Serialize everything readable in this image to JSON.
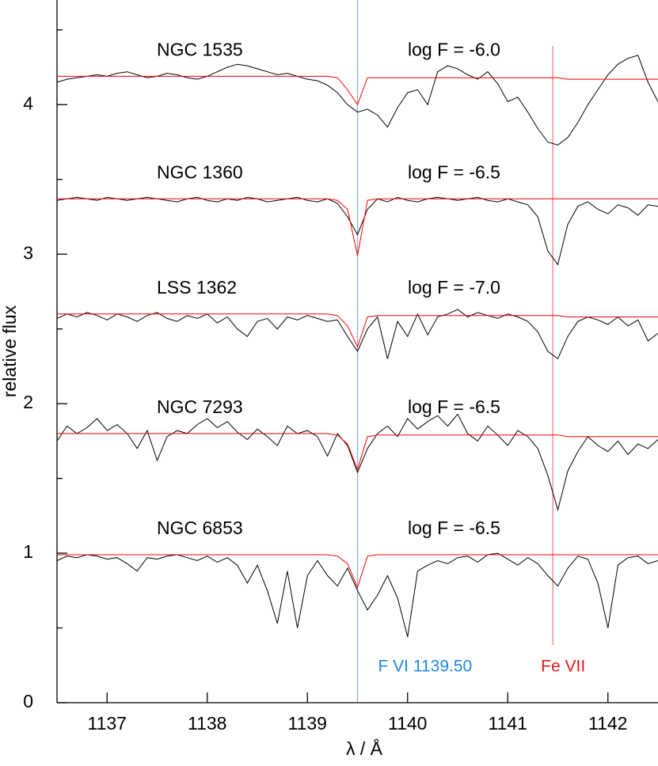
{
  "chart_data": {
    "type": "line",
    "xlabel": "λ / Å",
    "ylabel": "relative flux",
    "xlim": [
      1136.5,
      1142.5
    ],
    "ylim": [
      0,
      4.7
    ],
    "xticks": [
      1137,
      1138,
      1139,
      1140,
      1141,
      1142
    ],
    "yticks": [
      0,
      1,
      2,
      3,
      4
    ],
    "minor_yticks": [
      0.5,
      1.5,
      2.5,
      3.5,
      4.5
    ],
    "observed_color": "#000000",
    "model_color": "#ff0000",
    "x": [
      1136.5,
      1136.6,
      1136.7,
      1136.8,
      1136.9,
      1137.0,
      1137.1,
      1137.2,
      1137.3,
      1137.4,
      1137.5,
      1137.6,
      1137.7,
      1137.8,
      1137.9,
      1138.0,
      1138.1,
      1138.2,
      1138.3,
      1138.4,
      1138.5,
      1138.6,
      1138.7,
      1138.8,
      1138.9,
      1139.0,
      1139.1,
      1139.2,
      1139.3,
      1139.4,
      1139.5,
      1139.6,
      1139.7,
      1139.8,
      1139.9,
      1140.0,
      1140.1,
      1140.2,
      1140.3,
      1140.4,
      1140.5,
      1140.6,
      1140.7,
      1140.8,
      1140.9,
      1141.0,
      1141.1,
      1141.2,
      1141.3,
      1141.4,
      1141.5,
      1141.6,
      1141.7,
      1141.8,
      1141.9,
      1142.0,
      1142.1,
      1142.2,
      1142.3,
      1142.4,
      1142.5
    ],
    "lines": [
      {
        "label": "F VI 1139.50",
        "x": 1139.5,
        "color": "#8ab4d8",
        "label_color": "#1e88e5"
      },
      {
        "label": "Fe VII",
        "x": 1141.45,
        "color": "#f08080",
        "label_color": "#e8161b"
      }
    ],
    "spectra": [
      {
        "name": "NGC 1535",
        "annotation": "log F = -6.0",
        "observed": [
          4.15,
          4.17,
          4.18,
          4.19,
          4.2,
          4.19,
          4.21,
          4.22,
          4.2,
          4.18,
          4.19,
          4.21,
          4.2,
          4.18,
          4.17,
          4.19,
          4.22,
          4.25,
          4.27,
          4.26,
          4.24,
          4.22,
          4.2,
          4.21,
          4.19,
          4.17,
          4.16,
          4.13,
          4.08,
          4.0,
          3.95,
          3.97,
          3.93,
          3.85,
          3.98,
          4.08,
          4.1,
          4.0,
          4.22,
          4.26,
          4.24,
          4.2,
          4.17,
          4.22,
          4.14,
          4.02,
          4.05,
          3.95,
          3.84,
          3.75,
          3.73,
          3.78,
          3.88,
          4.0,
          4.1,
          4.2,
          4.27,
          4.31,
          4.33,
          4.15,
          4.02
        ],
        "model": [
          4.19,
          4.19,
          4.19,
          4.19,
          4.19,
          4.19,
          4.19,
          4.19,
          4.19,
          4.19,
          4.19,
          4.19,
          4.19,
          4.19,
          4.19,
          4.19,
          4.19,
          4.19,
          4.19,
          4.19,
          4.19,
          4.19,
          4.19,
          4.19,
          4.19,
          4.19,
          4.19,
          4.19,
          4.18,
          4.1,
          4.0,
          4.18,
          4.18,
          4.18,
          4.18,
          4.18,
          4.18,
          4.18,
          4.18,
          4.18,
          4.18,
          4.18,
          4.18,
          4.18,
          4.18,
          4.18,
          4.18,
          4.18,
          4.18,
          4.18,
          4.18,
          4.17,
          4.17,
          4.17,
          4.17,
          4.17,
          4.17,
          4.17,
          4.17,
          4.17,
          4.17
        ]
      },
      {
        "name": "NGC 1360",
        "annotation": "log F = -6.5",
        "observed": [
          3.36,
          3.37,
          3.38,
          3.37,
          3.36,
          3.38,
          3.37,
          3.36,
          3.37,
          3.38,
          3.37,
          3.36,
          3.35,
          3.37,
          3.38,
          3.36,
          3.35,
          3.37,
          3.36,
          3.38,
          3.37,
          3.35,
          3.36,
          3.37,
          3.38,
          3.36,
          3.35,
          3.37,
          3.34,
          3.25,
          3.13,
          3.3,
          3.37,
          3.35,
          3.38,
          3.36,
          3.35,
          3.37,
          3.38,
          3.37,
          3.36,
          3.37,
          3.38,
          3.36,
          3.35,
          3.37,
          3.35,
          3.33,
          3.25,
          3.02,
          2.93,
          3.2,
          3.32,
          3.35,
          3.3,
          3.27,
          3.33,
          3.31,
          3.26,
          3.33,
          3.32
        ],
        "model": [
          3.37,
          3.37,
          3.37,
          3.37,
          3.37,
          3.37,
          3.37,
          3.37,
          3.37,
          3.37,
          3.37,
          3.37,
          3.37,
          3.37,
          3.37,
          3.37,
          3.37,
          3.37,
          3.37,
          3.37,
          3.37,
          3.37,
          3.37,
          3.37,
          3.37,
          3.37,
          3.37,
          3.37,
          3.36,
          3.3,
          2.99,
          3.36,
          3.37,
          3.37,
          3.37,
          3.37,
          3.37,
          3.37,
          3.37,
          3.37,
          3.37,
          3.37,
          3.37,
          3.37,
          3.37,
          3.37,
          3.37,
          3.37,
          3.37,
          3.37,
          3.37,
          3.37,
          3.37,
          3.37,
          3.37,
          3.37,
          3.37,
          3.37,
          3.37,
          3.37,
          3.37
        ]
      },
      {
        "name": "LSS 1362",
        "annotation": "log F = -7.0",
        "observed": [
          2.57,
          2.6,
          2.58,
          2.61,
          2.59,
          2.56,
          2.6,
          2.58,
          2.55,
          2.59,
          2.61,
          2.57,
          2.55,
          2.59,
          2.57,
          2.6,
          2.54,
          2.58,
          2.5,
          2.45,
          2.55,
          2.57,
          2.5,
          2.58,
          2.56,
          2.59,
          2.57,
          2.55,
          2.56,
          2.45,
          2.35,
          2.5,
          2.58,
          2.3,
          2.55,
          2.45,
          2.6,
          2.46,
          2.58,
          2.6,
          2.63,
          2.58,
          2.61,
          2.59,
          2.57,
          2.6,
          2.58,
          2.55,
          2.48,
          2.35,
          2.3,
          2.45,
          2.55,
          2.58,
          2.56,
          2.53,
          2.58,
          2.52,
          2.56,
          2.42,
          2.47
        ],
        "model": [
          2.6,
          2.6,
          2.6,
          2.6,
          2.6,
          2.6,
          2.6,
          2.6,
          2.6,
          2.6,
          2.6,
          2.6,
          2.6,
          2.6,
          2.6,
          2.6,
          2.6,
          2.6,
          2.6,
          2.6,
          2.6,
          2.6,
          2.6,
          2.6,
          2.6,
          2.6,
          2.6,
          2.6,
          2.59,
          2.52,
          2.38,
          2.58,
          2.59,
          2.59,
          2.59,
          2.59,
          2.59,
          2.59,
          2.59,
          2.59,
          2.59,
          2.59,
          2.59,
          2.59,
          2.59,
          2.59,
          2.59,
          2.59,
          2.59,
          2.59,
          2.59,
          2.58,
          2.58,
          2.58,
          2.58,
          2.58,
          2.58,
          2.58,
          2.58,
          2.58,
          2.58
        ]
      },
      {
        "name": "NGC 7293",
        "annotation": "log F = -6.5",
        "observed": [
          1.75,
          1.85,
          1.8,
          1.84,
          1.9,
          1.82,
          1.86,
          1.8,
          1.7,
          1.82,
          1.62,
          1.78,
          1.82,
          1.8,
          1.86,
          1.9,
          1.84,
          1.88,
          1.81,
          1.76,
          1.83,
          1.78,
          1.72,
          1.85,
          1.8,
          1.82,
          1.78,
          1.65,
          1.8,
          1.72,
          1.54,
          1.7,
          1.8,
          1.85,
          1.78,
          1.9,
          1.83,
          1.88,
          1.92,
          1.85,
          1.93,
          1.8,
          1.75,
          1.85,
          1.79,
          1.72,
          1.82,
          1.78,
          1.7,
          1.52,
          1.29,
          1.55,
          1.68,
          1.78,
          1.72,
          1.68,
          1.75,
          1.66,
          1.73,
          1.7,
          1.76
        ],
        "model": [
          1.8,
          1.8,
          1.8,
          1.8,
          1.8,
          1.8,
          1.8,
          1.8,
          1.8,
          1.8,
          1.8,
          1.8,
          1.8,
          1.8,
          1.8,
          1.8,
          1.8,
          1.8,
          1.8,
          1.8,
          1.8,
          1.8,
          1.8,
          1.8,
          1.8,
          1.8,
          1.8,
          1.8,
          1.79,
          1.73,
          1.56,
          1.78,
          1.79,
          1.79,
          1.79,
          1.79,
          1.79,
          1.79,
          1.79,
          1.79,
          1.79,
          1.79,
          1.79,
          1.79,
          1.79,
          1.79,
          1.79,
          1.79,
          1.79,
          1.79,
          1.79,
          1.78,
          1.78,
          1.78,
          1.78,
          1.78,
          1.78,
          1.78,
          1.78,
          1.78,
          1.78
        ]
      },
      {
        "name": "NGC 6853",
        "annotation": "log F = -6.5",
        "observed": [
          0.95,
          0.98,
          0.97,
          0.99,
          0.98,
          0.96,
          0.97,
          0.93,
          0.88,
          0.97,
          0.96,
          0.98,
          0.99,
          0.97,
          0.95,
          0.98,
          0.94,
          0.97,
          0.92,
          0.8,
          0.92,
          0.75,
          0.53,
          0.88,
          0.5,
          0.85,
          0.95,
          0.85,
          0.78,
          0.9,
          0.75,
          0.62,
          0.72,
          0.85,
          0.7,
          0.44,
          0.88,
          0.92,
          0.95,
          0.93,
          0.97,
          0.98,
          0.94,
          0.99,
          1.0,
          0.96,
          0.92,
          0.97,
          0.93,
          0.85,
          0.78,
          0.9,
          0.98,
          0.96,
          0.8,
          0.5,
          0.92,
          0.97,
          0.98,
          0.93,
          0.95
        ],
        "model": [
          0.99,
          0.99,
          0.99,
          0.99,
          0.99,
          0.99,
          0.99,
          0.99,
          0.99,
          0.99,
          0.99,
          0.99,
          0.99,
          0.99,
          0.99,
          0.99,
          0.99,
          0.99,
          0.99,
          0.99,
          0.99,
          0.99,
          0.99,
          0.99,
          0.99,
          0.99,
          0.99,
          0.99,
          0.98,
          0.93,
          0.77,
          0.98,
          0.99,
          0.99,
          0.99,
          0.99,
          0.99,
          0.99,
          0.99,
          0.99,
          0.99,
          0.99,
          0.99,
          0.99,
          0.99,
          0.99,
          0.99,
          0.99,
          0.99,
          0.99,
          0.99,
          0.99,
          0.99,
          0.99,
          0.99,
          0.99,
          0.99,
          0.99,
          0.99,
          0.99,
          0.99
        ]
      }
    ]
  }
}
